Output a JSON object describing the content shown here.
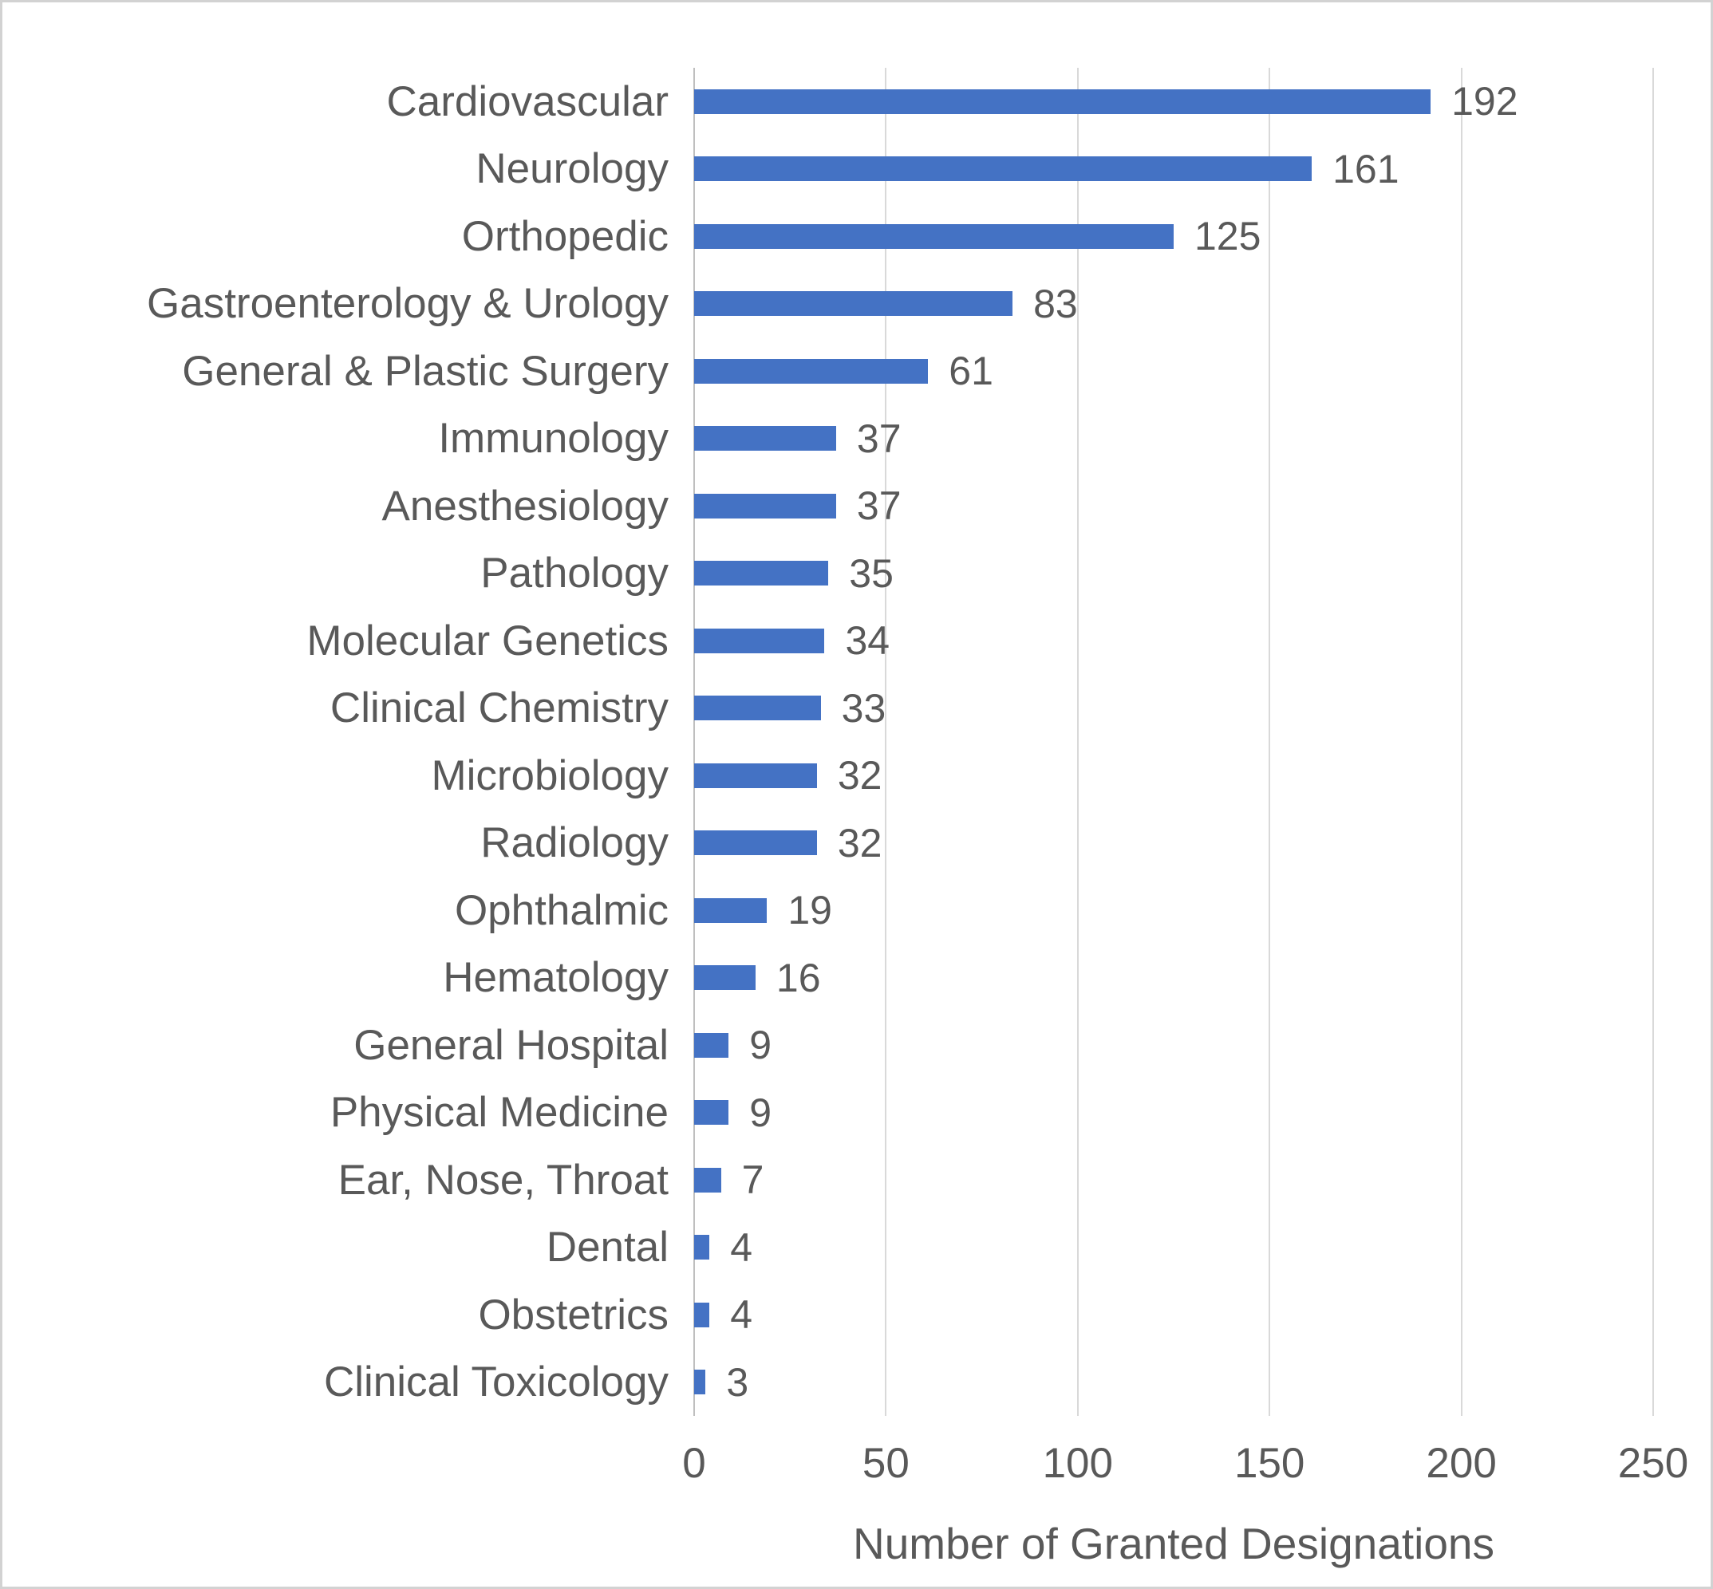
{
  "chart_data": {
    "type": "bar",
    "orientation": "horizontal",
    "title": "",
    "xlabel": "Number of Granted Designations",
    "ylabel": "",
    "categories": [
      "Cardiovascular",
      "Neurology",
      "Orthopedic",
      "Gastroenterology & Urology",
      "General & Plastic Surgery",
      "Immunology",
      "Anesthesiology",
      "Pathology",
      "Molecular Genetics",
      "Clinical Chemistry",
      "Microbiology",
      "Radiology",
      "Ophthalmic",
      "Hematology",
      "General Hospital",
      "Physical Medicine",
      "Ear, Nose, Throat",
      "Dental",
      "Obstetrics",
      "Clinical Toxicology"
    ],
    "values": [
      192,
      161,
      125,
      83,
      61,
      37,
      37,
      35,
      34,
      33,
      32,
      32,
      19,
      16,
      9,
      9,
      7,
      4,
      4,
      3
    ],
    "data_labels": true,
    "xlim": [
      0,
      250
    ],
    "xticks": [
      0,
      50,
      100,
      150,
      200,
      250
    ],
    "grid": "vertical-major",
    "legend": "none",
    "colors": {
      "bar": "#4472C4",
      "text": "#595959",
      "gridline": "#D9D9D9",
      "axis_line": "#BFBFBF",
      "frame_border": "#D2D2D2",
      "background": "#FFFFFF"
    }
  }
}
